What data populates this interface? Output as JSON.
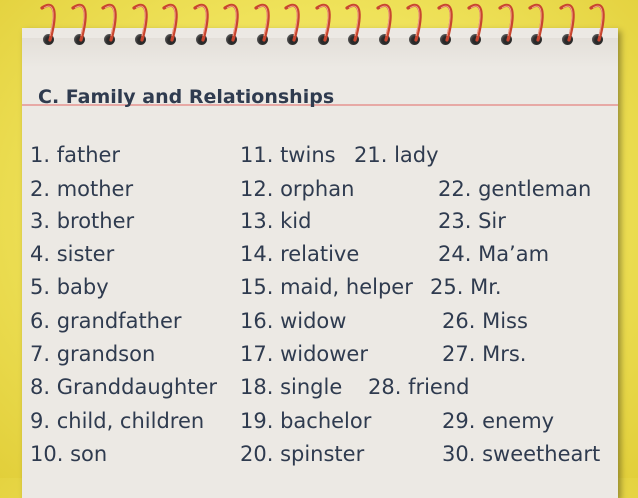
{
  "heading": "C. Family and Relationships",
  "col1": [
    "1. father",
    "2. mother",
    "3. brother",
    "4. sister",
    "5. baby",
    "6. grandfather",
    "7. grandson",
    "8. Granddaughter",
    "9. child, children",
    "10. son"
  ],
  "col2": [
    "11. twins",
    "12. orphan",
    "13. kid",
    "14. relative",
    "15. maid, helper",
    "16. widow",
    "17. widower",
    "18. single",
    "19. bachelor",
    "20. spinster"
  ],
  "col3": [
    "21. lady",
    "22. gentleman",
    "23. Sir",
    "24. Ma’am",
    "25. Mr.",
    "26. Miss",
    "27. Mrs.",
    "28. friend",
    "29. enemy",
    "30. sweetheart"
  ],
  "colors": {
    "paper": "#ece9e4",
    "text": "#2f3b4f",
    "rule": "#e7a9a5",
    "background": "#efe25a"
  }
}
